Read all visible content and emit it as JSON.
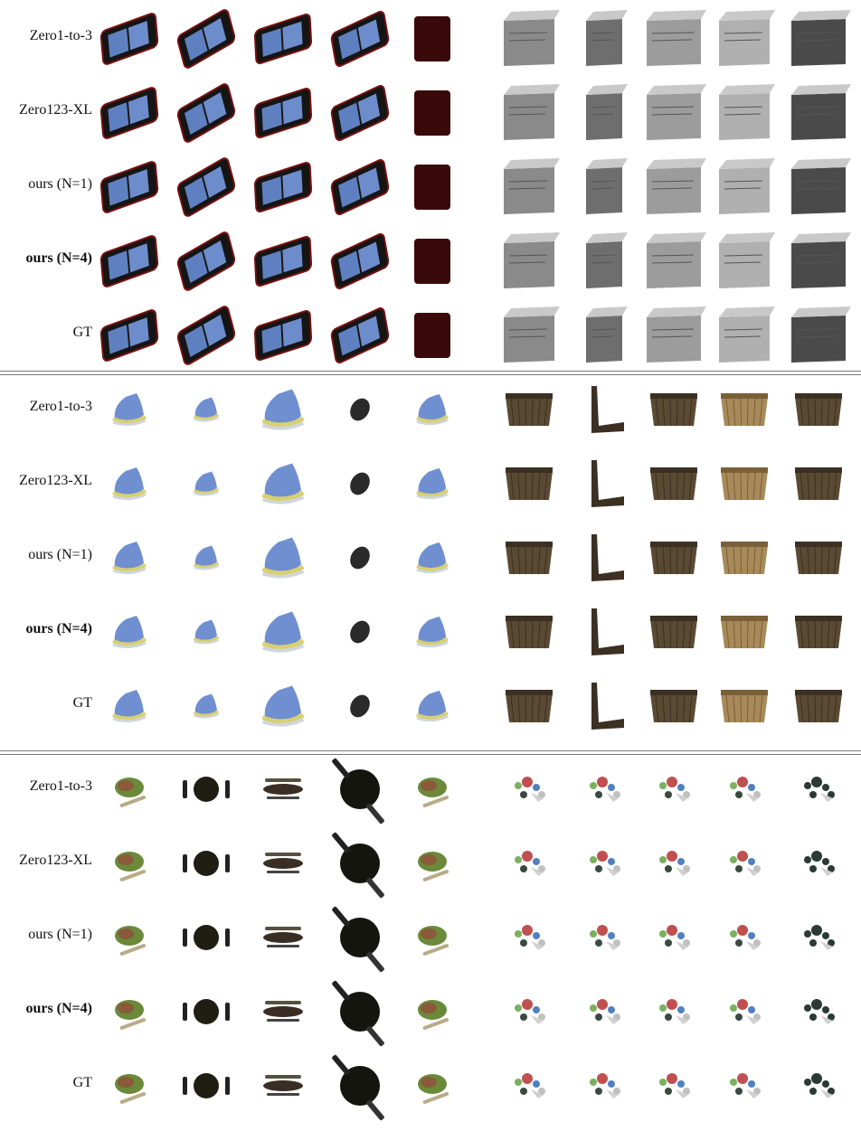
{
  "groups": [
    {
      "objects": [
        "tablet",
        "box"
      ],
      "rows": [
        {
          "label": "Zero1-to-3",
          "bold": false
        },
        {
          "label": "Zero123-XL",
          "bold": false
        },
        {
          "label": "ours (N=1)",
          "bold": false
        },
        {
          "label": "ours (N=4)",
          "bold": true
        },
        {
          "label": "GT",
          "bold": false
        }
      ]
    },
    {
      "objects": [
        "sneaker",
        "basket"
      ],
      "rows": [
        {
          "label": "Zero1-to-3",
          "bold": false
        },
        {
          "label": "Zero123-XL",
          "bold": false
        },
        {
          "label": "ours (N=1)",
          "bold": false
        },
        {
          "label": "ours (N=4)",
          "bold": true
        },
        {
          "label": "GT",
          "bold": false
        }
      ]
    },
    {
      "objects": [
        "food-plate",
        "toy-set"
      ],
      "rows": [
        {
          "label": "Zero1-to-3",
          "bold": false
        },
        {
          "label": "Zero123-XL",
          "bold": false
        },
        {
          "label": "ours (N=1)",
          "bold": false
        },
        {
          "label": "ours (N=4)",
          "bold": true
        },
        {
          "label": "GT",
          "bold": false
        }
      ]
    }
  ]
}
